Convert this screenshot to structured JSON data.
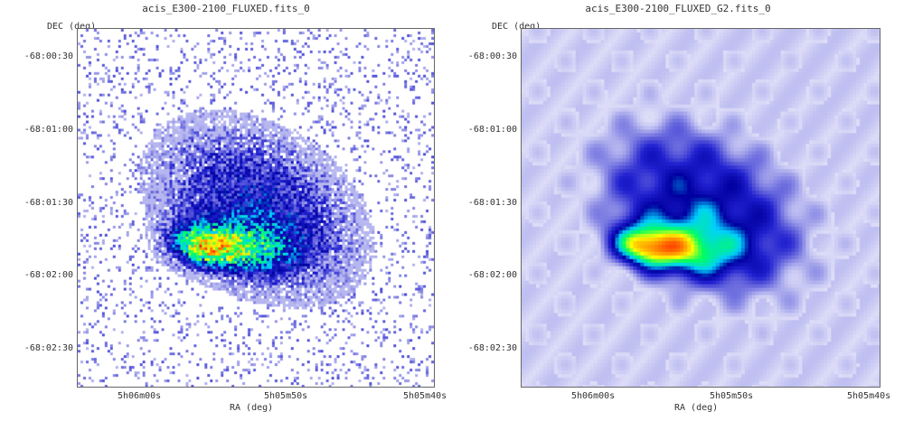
{
  "panels": [
    {
      "title": "acis_E300-2100_FLUXED.fits_0",
      "dec_label": "DEC (deg)",
      "ra_label": "RA (deg)",
      "y_ticks": [
        "-68:00:30",
        "-68:01:00",
        "-68:01:30",
        "-68:02:00",
        "-68:02:30"
      ],
      "x_ticks": [
        "5h06m00s",
        "5h05m50s",
        "5h05m40s"
      ],
      "style": "raw-counts"
    },
    {
      "title": "acis_E300-2100_FLUXED_G2.fits_0",
      "dec_label": "DEC (deg)",
      "ra_label": "RA (deg)",
      "y_ticks": [
        "-68:00:30",
        "-68:01:00",
        "-68:01:30",
        "-68:02:00",
        "-68:02:30"
      ],
      "x_ticks": [
        "5h06m00s",
        "5h05m50s",
        "5h05m40s"
      ],
      "style": "smoothed"
    }
  ],
  "colormap": [
    "#ffffff",
    "#c8c8f4",
    "#7070e0",
    "#2020d0",
    "#0000a0",
    "#00d0ff",
    "#00ff60",
    "#ffff00",
    "#ff8000",
    "#ff0000",
    "#300000"
  ]
}
